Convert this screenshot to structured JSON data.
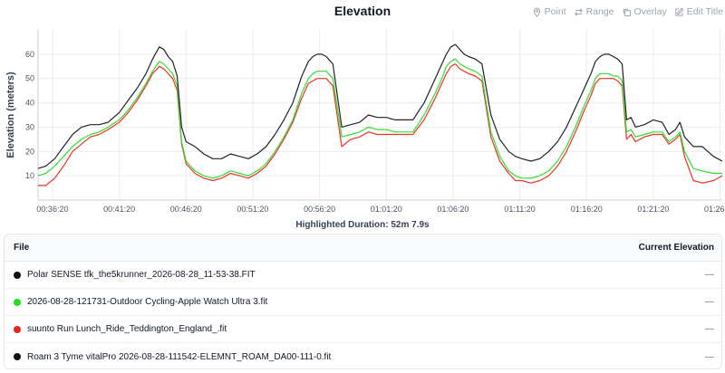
{
  "chart": {
    "title": "Elevation",
    "toolbar": {
      "point": "Point",
      "range": "Range",
      "overlay": "Overlay",
      "edit_title": "Edit Title"
    },
    "highlighted_duration": "Highlighted Duration: 52m 7.9s"
  },
  "chart_data": {
    "type": "line",
    "title": "Elevation",
    "xlabel": "",
    "ylabel": "Elevation (meters)",
    "ylim": [
      0,
      70
    ],
    "yticks": [
      10,
      20,
      30,
      40,
      50,
      60
    ],
    "xlim": [
      2115,
      5190
    ],
    "xticks": [
      {
        "label": "00:36:20",
        "seconds": 2180
      },
      {
        "label": "00:41:20",
        "seconds": 2480
      },
      {
        "label": "00:46:20",
        "seconds": 2780
      },
      {
        "label": "00:51:20",
        "seconds": 3080
      },
      {
        "label": "00:56:20",
        "seconds": 3380
      },
      {
        "label": "01:01:20",
        "seconds": 3680
      },
      {
        "label": "01:06:20",
        "seconds": 3980
      },
      {
        "label": "01:11:20",
        "seconds": 4280
      },
      {
        "label": "01:16:20",
        "seconds": 4580
      },
      {
        "label": "01:21:20",
        "seconds": 4880
      },
      {
        "label": "01:26:20",
        "seconds": 5180
      }
    ],
    "grid": true,
    "series": [
      {
        "name": "Polar SENSE tfk_the5krunner_2026-08-28_11-53-38.FIT",
        "color": "#222222",
        "x": [
          2115,
          2150,
          2190,
          2230,
          2270,
          2310,
          2350,
          2390,
          2430,
          2480,
          2520,
          2560,
          2600,
          2630,
          2660,
          2680,
          2700,
          2720,
          2740,
          2760,
          2780,
          2820,
          2860,
          2900,
          2940,
          2980,
          3020,
          3060,
          3100,
          3140,
          3180,
          3220,
          3260,
          3300,
          3330,
          3350,
          3370,
          3390,
          3410,
          3420,
          3440,
          3480,
          3520,
          3560,
          3600,
          3640,
          3680,
          3720,
          3760,
          3800,
          3850,
          3900,
          3930,
          3950,
          3970,
          3990,
          4010,
          4030,
          4050,
          4080,
          4110,
          4150,
          4190,
          4230,
          4260,
          4290,
          4330,
          4370,
          4410,
          4450,
          4490,
          4530,
          4570,
          4600,
          4620,
          4640,
          4660,
          4680,
          4700,
          4720,
          4740,
          4760,
          4780,
          4800,
          4840,
          4880,
          4920,
          4950,
          4980,
          5000,
          5020,
          5060,
          5100,
          5150,
          5190
        ],
        "y": [
          13,
          14,
          17,
          22,
          27,
          30,
          31,
          31,
          32,
          36,
          41,
          46,
          52,
          58,
          63,
          62,
          59,
          57,
          51,
          30,
          24,
          22,
          19,
          17,
          17,
          19,
          18,
          17,
          19,
          22,
          27,
          33,
          40,
          51,
          57,
          59,
          60,
          60,
          59,
          58,
          56,
          30,
          31,
          32,
          35,
          34,
          34,
          33,
          33,
          33,
          40,
          50,
          56,
          60,
          63,
          64,
          62,
          60,
          59,
          58,
          56,
          35,
          25,
          20,
          18,
          17,
          16,
          17,
          20,
          24,
          30,
          38,
          46,
          52,
          57,
          59,
          60,
          60,
          59,
          58,
          56,
          33,
          34,
          30,
          31,
          33,
          32,
          27,
          29,
          32,
          26,
          22,
          22,
          18,
          16
        ]
      },
      {
        "name": "2026-08-28-121731-Outdoor Cycling-Apple Watch Ultra 3.fit",
        "color": "#33dd33",
        "x": [
          2115,
          2150,
          2190,
          2230,
          2270,
          2310,
          2350,
          2390,
          2430,
          2480,
          2520,
          2560,
          2600,
          2630,
          2660,
          2680,
          2700,
          2720,
          2740,
          2760,
          2780,
          2820,
          2860,
          2900,
          2940,
          2980,
          3020,
          3060,
          3100,
          3140,
          3180,
          3220,
          3260,
          3300,
          3330,
          3350,
          3370,
          3390,
          3410,
          3420,
          3440,
          3480,
          3520,
          3560,
          3600,
          3640,
          3680,
          3720,
          3760,
          3800,
          3850,
          3900,
          3930,
          3950,
          3970,
          3990,
          4010,
          4030,
          4050,
          4080,
          4110,
          4150,
          4190,
          4230,
          4260,
          4290,
          4330,
          4370,
          4410,
          4450,
          4490,
          4530,
          4570,
          4600,
          4620,
          4640,
          4660,
          4680,
          4700,
          4720,
          4740,
          4760,
          4780,
          4800,
          4840,
          4880,
          4920,
          4950,
          4980,
          5000,
          5020,
          5060,
          5100,
          5150,
          5190
        ],
        "y": [
          10,
          11,
          14,
          18,
          22,
          25,
          27,
          28,
          30,
          33,
          37,
          42,
          48,
          53,
          57,
          56,
          54,
          52,
          47,
          24,
          16,
          12,
          10,
          9,
          10,
          12,
          11,
          10,
          12,
          15,
          20,
          26,
          33,
          44,
          50,
          52,
          53,
          53,
          53,
          52,
          50,
          26,
          27,
          28,
          30,
          29,
          29,
          28,
          28,
          28,
          35,
          44,
          50,
          55,
          57,
          58,
          56,
          55,
          54,
          53,
          51,
          28,
          18,
          12,
          10,
          9,
          9,
          10,
          12,
          16,
          22,
          30,
          39,
          45,
          50,
          52,
          52,
          52,
          51,
          51,
          49,
          28,
          29,
          26,
          27,
          28,
          28,
          24,
          26,
          28,
          20,
          13,
          12,
          11,
          11
        ]
      },
      {
        "name": "suunto Run Lunch_Ride_Teddington_England_.fit",
        "color": "#ee3322",
        "x": [
          2115,
          2150,
          2190,
          2230,
          2270,
          2310,
          2350,
          2390,
          2430,
          2480,
          2520,
          2560,
          2600,
          2630,
          2660,
          2680,
          2700,
          2720,
          2740,
          2760,
          2780,
          2820,
          2860,
          2900,
          2940,
          2980,
          3020,
          3060,
          3100,
          3140,
          3180,
          3220,
          3260,
          3300,
          3330,
          3350,
          3370,
          3390,
          3410,
          3420,
          3440,
          3480,
          3520,
          3560,
          3600,
          3640,
          3680,
          3720,
          3760,
          3800,
          3850,
          3900,
          3930,
          3950,
          3970,
          3990,
          4010,
          4030,
          4050,
          4080,
          4110,
          4150,
          4190,
          4230,
          4260,
          4290,
          4330,
          4370,
          4410,
          4450,
          4490,
          4530,
          4570,
          4600,
          4620,
          4640,
          4660,
          4680,
          4700,
          4720,
          4740,
          4760,
          4780,
          4800,
          4840,
          4880,
          4920,
          4950,
          4980,
          5000,
          5020,
          5060,
          5100,
          5150,
          5190
        ],
        "y": [
          6,
          6,
          9,
          14,
          20,
          23,
          26,
          27,
          29,
          32,
          36,
          41,
          47,
          52,
          55,
          54,
          52,
          50,
          45,
          23,
          15,
          11,
          9,
          8,
          9,
          11,
          10,
          9,
          11,
          14,
          19,
          25,
          32,
          42,
          48,
          49,
          50,
          50,
          50,
          49,
          47,
          22,
          25,
          26,
          28,
          27,
          27,
          27,
          27,
          27,
          33,
          42,
          48,
          52,
          55,
          56,
          54,
          53,
          52,
          51,
          49,
          26,
          16,
          11,
          8,
          8,
          7,
          8,
          10,
          14,
          20,
          28,
          37,
          43,
          48,
          50,
          50,
          50,
          50,
          49,
          47,
          25,
          27,
          24,
          26,
          27,
          27,
          23,
          25,
          27,
          18,
          8,
          7,
          8,
          10
        ]
      }
    ]
  },
  "table": {
    "header_file": "File",
    "header_elevation": "Current Elevation",
    "rows": [
      {
        "file": "Polar SENSE tfk_the5krunner_2026-08-28_11-53-38.FIT",
        "color": "#111111",
        "value": "—"
      },
      {
        "file": "2026-08-28-121731-Outdoor Cycling-Apple Watch Ultra 3.fit",
        "color": "#22dd22",
        "value": "—"
      },
      {
        "file": "suunto Run Lunch_Ride_Teddington_England_.fit",
        "color": "#e8261c",
        "value": "—"
      },
      {
        "file": "Roam 3 Tyme vitalPro 2026-08-28-111542-ELEMNT_ROAM_DA00-111-0.fit",
        "color": "#111111",
        "value": "—"
      }
    ]
  }
}
